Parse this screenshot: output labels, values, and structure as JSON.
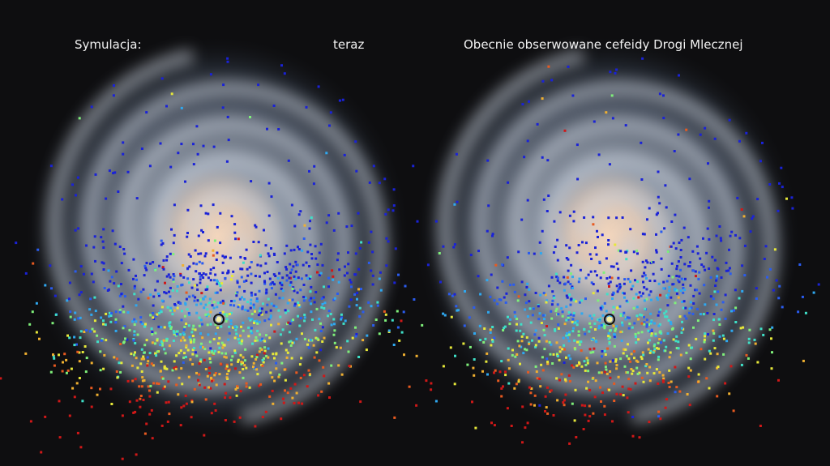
{
  "left_panel": {
    "label": "Symulacja:",
    "time": "teraz"
  },
  "right_panel": {
    "title": "Obecnie obserwowane cefeidy Drogi Mlecznej"
  }
}
